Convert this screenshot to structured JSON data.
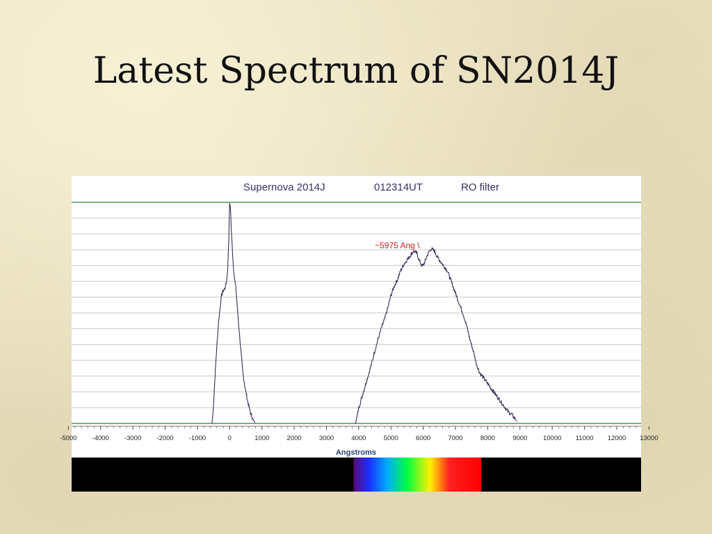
{
  "slide": {
    "title": "Latest Spectrum of SN2014J"
  },
  "chart_data": {
    "type": "line",
    "title_parts": [
      "Supernova 2014J",
      "012314UT",
      "RO filter"
    ],
    "xlabel": "Angstroms",
    "ylabel": "",
    "xlim": [
      -5000,
      12800
    ],
    "ylim": [
      0,
      1.0
    ],
    "x_ticks": [
      -5000,
      -4000,
      -3000,
      -2000,
      -1000,
      0,
      1000,
      2000,
      3000,
      4000,
      5000,
      6000,
      7000,
      8000,
      9000,
      10000,
      11000,
      12000,
      13000
    ],
    "x_tick_labels": [
      "-5000",
      "-4000",
      "-3000",
      "-2000",
      "-1000",
      "0",
      "1000",
      "2000",
      "3000",
      "4000",
      "5000",
      "6000",
      "7000",
      "8000",
      "9000",
      "10000",
      "11000",
      "12000",
      "13000"
    ],
    "grid": true,
    "line_color": "#3a2a5a",
    "grid_color": "#c8c8c8",
    "frame_color": "#2e7d2e",
    "series": [
      {
        "x": [
          -550,
          -520,
          -480,
          -420,
          -350,
          -300,
          -250,
          -200,
          -150,
          -100,
          -60,
          -30,
          -10,
          0,
          15,
          30,
          50,
          80,
          110,
          150,
          200,
          260,
          330,
          400,
          480,
          560,
          640,
          720,
          760,
          800,
          3900,
          3950,
          4000,
          4100,
          4200,
          4300,
          4400,
          4500,
          4600,
          4700,
          4800,
          4900,
          5000,
          5100,
          5200,
          5300,
          5400,
          5500,
          5600,
          5700,
          5800,
          5900,
          5975,
          6050,
          6150,
          6250,
          6350,
          6450,
          6550,
          6650,
          6750,
          6850,
          6950,
          7050,
          7150,
          7250,
          7350,
          7450,
          7550,
          7650,
          7750,
          7850,
          7950,
          8050,
          8150,
          8250,
          8350,
          8450,
          8550,
          8650,
          8750,
          8850,
          8900
        ],
        "y": [
          0.0,
          0.04,
          0.14,
          0.3,
          0.45,
          0.52,
          0.58,
          0.6,
          0.61,
          0.64,
          0.7,
          0.82,
          0.94,
          1.0,
          0.98,
          0.96,
          0.88,
          0.8,
          0.72,
          0.66,
          0.6,
          0.48,
          0.36,
          0.24,
          0.16,
          0.1,
          0.05,
          0.02,
          0.01,
          0.0,
          0.0,
          0.03,
          0.07,
          0.12,
          0.17,
          0.22,
          0.27,
          0.33,
          0.38,
          0.43,
          0.47,
          0.52,
          0.58,
          0.62,
          0.65,
          0.69,
          0.72,
          0.74,
          0.76,
          0.78,
          0.77,
          0.73,
          0.71,
          0.73,
          0.77,
          0.79,
          0.78,
          0.75,
          0.73,
          0.71,
          0.69,
          0.65,
          0.61,
          0.57,
          0.53,
          0.49,
          0.44,
          0.38,
          0.33,
          0.27,
          0.23,
          0.21,
          0.19,
          0.17,
          0.15,
          0.13,
          0.11,
          0.09,
          0.07,
          0.05,
          0.04,
          0.02,
          0.01
        ]
      }
    ],
    "annotations": [
      {
        "text": "~5975 Ang \\",
        "x": 5975,
        "y": 0.78
      }
    ],
    "spectrum_band": {
      "start": 3800,
      "end": 7800,
      "colors": [
        "#5a0a7a",
        "#1c2fff",
        "#00aaff",
        "#00ff40",
        "#fff000",
        "#ff2020",
        "#ff0000"
      ]
    }
  }
}
